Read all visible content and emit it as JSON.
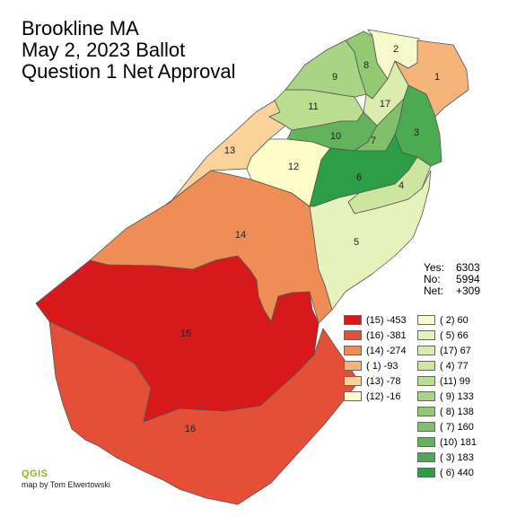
{
  "title": {
    "line1": "Brookline MA",
    "line2": "May 2, 2023 Ballot",
    "line3": "Question 1 Net Approval"
  },
  "totals": {
    "yes_label": "Yes:",
    "yes_value": "6303",
    "no_label": "No:",
    "no_value": "5994",
    "net_label": "Net:",
    "net_value": "+309"
  },
  "precincts": [
    {
      "id": "1",
      "net": -93,
      "color": "#f6b47a"
    },
    {
      "id": "2",
      "net": 60,
      "color": "#f5f9cc"
    },
    {
      "id": "3",
      "net": 183,
      "color": "#4cab52"
    },
    {
      "id": "4",
      "net": 77,
      "color": "#cce6a0"
    },
    {
      "id": "5",
      "net": 66,
      "color": "#e5f2bb"
    },
    {
      "id": "6",
      "net": 440,
      "color": "#2d9e46"
    },
    {
      "id": "7",
      "net": 160,
      "color": "#80c06a"
    },
    {
      "id": "8",
      "net": 138,
      "color": "#93c973"
    },
    {
      "id": "9",
      "net": 133,
      "color": "#a8d483"
    },
    {
      "id": "10",
      "net": 181,
      "color": "#62b35c"
    },
    {
      "id": "11",
      "net": 99,
      "color": "#bbdd8f"
    },
    {
      "id": "12",
      "net": -16,
      "color": "#fdfbc7"
    },
    {
      "id": "13",
      "net": -78,
      "color": "#fbd39a"
    },
    {
      "id": "14",
      "net": -274,
      "color": "#ef8d56"
    },
    {
      "id": "15",
      "net": -453,
      "color": "#d7191c"
    },
    {
      "id": "16",
      "net": -381,
      "color": "#e54f37"
    },
    {
      "id": "17",
      "net": 67,
      "color": "#daedae"
    }
  ],
  "legend": {
    "left": [
      {
        "label": "(15) -453",
        "color": "#d7191c"
      },
      {
        "label": "(16) -381",
        "color": "#e54f37"
      },
      {
        "label": "(14) -274",
        "color": "#ef8d56"
      },
      {
        "label": "( 1) -93",
        "color": "#f6b47a"
      },
      {
        "label": "(13) -78",
        "color": "#fbd39a"
      },
      {
        "label": "(12) -16",
        "color": "#fdfbc7"
      }
    ],
    "right": [
      {
        "label": "( 2) 60",
        "color": "#f5f9cc"
      },
      {
        "label": "( 5) 66",
        "color": "#e5f2bb"
      },
      {
        "label": "(17) 67",
        "color": "#daedae"
      },
      {
        "label": "( 4) 77",
        "color": "#cce6a0"
      },
      {
        "label": "(11) 99",
        "color": "#bbdd8f"
      },
      {
        "label": "( 9) 133",
        "color": "#a8d483"
      },
      {
        "label": "( 8) 138",
        "color": "#93c973"
      },
      {
        "label": "( 7) 160",
        "color": "#80c06a"
      },
      {
        "label": "(10) 181",
        "color": "#62b35c"
      },
      {
        "label": "( 3) 183",
        "color": "#4cab52"
      },
      {
        "label": "( 6) 440",
        "color": "#2d9e46"
      }
    ]
  },
  "credit": {
    "logo": "QGIS",
    "author": "map by Tom Elwertowski"
  }
}
